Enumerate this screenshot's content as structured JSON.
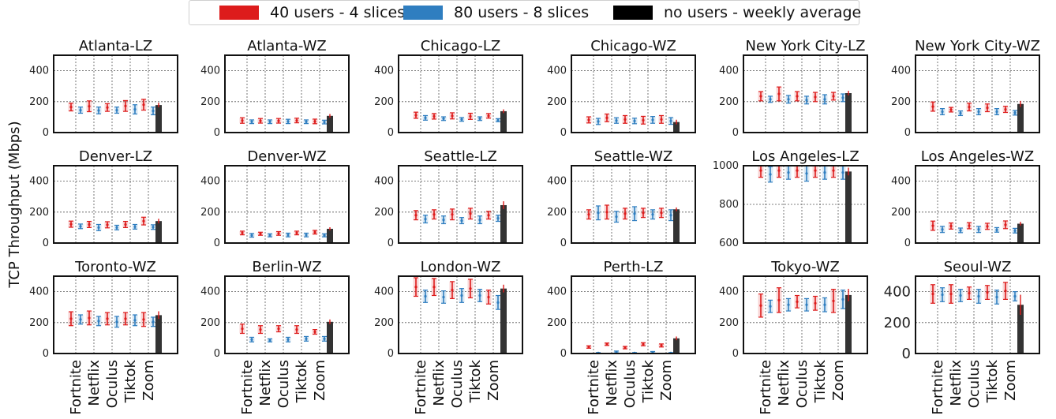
{
  "chart_data": {
    "type": "bar",
    "ylabel": "TCP Throughput (Mbps)",
    "categories": [
      "Fortnite",
      "Netflix",
      "Oculus",
      "Tiktok",
      "Zoom"
    ],
    "legend": [
      {
        "label": "40 users - 4 slices",
        "color": "#dd1c1c"
      },
      {
        "label": "80 users - 8 slices",
        "color": "#2f7ec0"
      },
      {
        "label": "no users - weekly average",
        "color": "#000000"
      }
    ],
    "panels": [
      {
        "title": "Atlanta-LZ",
        "ylim": [
          0,
          500
        ],
        "yticks": [
          0,
          200,
          400
        ],
        "s40": [
          [
            165,
            25
          ],
          [
            170,
            35
          ],
          [
            162,
            25
          ],
          [
            172,
            35
          ],
          [
            180,
            35
          ]
        ],
        "s80": [
          [
            145,
            20
          ],
          [
            143,
            22
          ],
          [
            145,
            20
          ],
          [
            150,
            30
          ],
          [
            140,
            25
          ]
        ],
        "avg": [
          178,
          15
        ]
      },
      {
        "title": "Atlanta-WZ",
        "ylim": [
          0,
          500
        ],
        "yticks": [
          0,
          200,
          400
        ],
        "s40": [
          [
            78,
            18
          ],
          [
            76,
            15
          ],
          [
            76,
            15
          ],
          [
            78,
            15
          ],
          [
            72,
            15
          ]
        ],
        "s80": [
          [
            70,
            12
          ],
          [
            70,
            12
          ],
          [
            72,
            14
          ],
          [
            70,
            12
          ],
          [
            68,
            12
          ]
        ],
        "avg": [
          108,
          12
        ]
      },
      {
        "title": "Chicago-LZ",
        "ylim": [
          0,
          500
        ],
        "yticks": [
          0,
          200,
          400
        ],
        "s40": [
          [
            112,
            20
          ],
          [
            105,
            18
          ],
          [
            108,
            20
          ],
          [
            105,
            20
          ],
          [
            108,
            15
          ]
        ],
        "s80": [
          [
            95,
            15
          ],
          [
            90,
            12
          ],
          [
            85,
            12
          ],
          [
            90,
            12
          ],
          [
            80,
            10
          ]
        ],
        "avg": [
          138,
          12
        ]
      },
      {
        "title": "Chicago-WZ",
        "ylim": [
          0,
          500
        ],
        "yticks": [
          0,
          200,
          400
        ],
        "s40": [
          [
            82,
            20
          ],
          [
            95,
            25
          ],
          [
            85,
            25
          ],
          [
            80,
            25
          ],
          [
            85,
            25
          ]
        ],
        "s80": [
          [
            72,
            20
          ],
          [
            78,
            18
          ],
          [
            75,
            18
          ],
          [
            82,
            22
          ],
          [
            75,
            22
          ]
        ],
        "avg": [
          68,
          15
        ]
      },
      {
        "title": "New York City-LZ",
        "ylim": [
          0,
          500
        ],
        "yticks": [
          0,
          200,
          400
        ],
        "s40": [
          [
            235,
            30
          ],
          [
            250,
            45
          ],
          [
            235,
            30
          ],
          [
            230,
            30
          ],
          [
            235,
            25
          ]
        ],
        "s80": [
          [
            215,
            20
          ],
          [
            215,
            25
          ],
          [
            210,
            25
          ],
          [
            215,
            30
          ],
          [
            225,
            25
          ]
        ],
        "avg": [
          255,
          15
        ]
      },
      {
        "title": "New York City-WZ",
        "ylim": [
          0,
          500
        ],
        "yticks": [
          0,
          200,
          400
        ],
        "s40": [
          [
            168,
            30
          ],
          [
            148,
            15
          ],
          [
            165,
            25
          ],
          [
            160,
            25
          ],
          [
            150,
            20
          ]
        ],
        "s80": [
          [
            135,
            20
          ],
          [
            125,
            15
          ],
          [
            135,
            20
          ],
          [
            135,
            20
          ],
          [
            128,
            15
          ]
        ],
        "avg": [
          185,
          20
        ]
      },
      {
        "title": "Denver-LZ",
        "ylim": [
          0,
          500
        ],
        "yticks": [
          0,
          200,
          400
        ],
        "s40": [
          [
            122,
            20
          ],
          [
            120,
            20
          ],
          [
            118,
            20
          ],
          [
            120,
            20
          ],
          [
            142,
            25
          ]
        ],
        "s80": [
          [
            108,
            15
          ],
          [
            100,
            20
          ],
          [
            100,
            15
          ],
          [
            105,
            15
          ],
          [
            103,
            15
          ]
        ],
        "avg": [
          142,
          15
        ]
      },
      {
        "title": "Denver-WZ",
        "ylim": [
          0,
          500
        ],
        "yticks": [
          0,
          200,
          400
        ],
        "s40": [
          [
            65,
            12
          ],
          [
            60,
            10
          ],
          [
            62,
            12
          ],
          [
            65,
            12
          ],
          [
            70,
            12
          ]
        ],
        "s80": [
          [
            50,
            12
          ],
          [
            50,
            10
          ],
          [
            52,
            12
          ],
          [
            52,
            12
          ],
          [
            50,
            10
          ]
        ],
        "avg": [
          92,
          10
        ]
      },
      {
        "title": "Seattle-LZ",
        "ylim": [
          0,
          500
        ],
        "yticks": [
          0,
          200,
          400
        ],
        "s40": [
          [
            180,
            30
          ],
          [
            185,
            30
          ],
          [
            185,
            35
          ],
          [
            190,
            35
          ],
          [
            180,
            25
          ]
        ],
        "s80": [
          [
            155,
            25
          ],
          [
            150,
            25
          ],
          [
            145,
            20
          ],
          [
            150,
            25
          ],
          [
            160,
            20
          ]
        ],
        "avg": [
          245,
          25
        ]
      },
      {
        "title": "Seattle-WZ",
        "ylim": [
          0,
          500
        ],
        "yticks": [
          0,
          200,
          400
        ],
        "s40": [
          [
            185,
            30
          ],
          [
            200,
            45
          ],
          [
            190,
            35
          ],
          [
            195,
            30
          ],
          [
            195,
            30
          ]
        ],
        "s80": [
          [
            195,
            45
          ],
          [
            170,
            35
          ],
          [
            190,
            45
          ],
          [
            185,
            30
          ],
          [
            180,
            35
          ]
        ],
        "avg": [
          218,
          12
        ]
      },
      {
        "title": "Los Angeles-LZ",
        "ylim": [
          600,
          1000
        ],
        "yticks": [
          600,
          800,
          1000
        ],
        "s40": [
          [
            975,
            35
          ],
          [
            975,
            35
          ],
          [
            975,
            35
          ],
          [
            975,
            35
          ],
          [
            975,
            35
          ]
        ],
        "s80": [
          [
            955,
            40
          ],
          [
            965,
            35
          ],
          [
            960,
            40
          ],
          [
            965,
            35
          ],
          [
            965,
            35
          ]
        ],
        "avg": [
          970,
          20
        ]
      },
      {
        "title": "Los Angeles-WZ",
        "ylim": [
          0,
          500
        ],
        "yticks": [
          0,
          200,
          400
        ],
        "s40": [
          [
            112,
            30
          ],
          [
            110,
            20
          ],
          [
            112,
            20
          ],
          [
            108,
            20
          ],
          [
            118,
            25
          ]
        ],
        "s80": [
          [
            88,
            20
          ],
          [
            82,
            15
          ],
          [
            88,
            20
          ],
          [
            85,
            15
          ],
          [
            80,
            15
          ]
        ],
        "avg": [
          125,
          12
        ]
      },
      {
        "title": "Toronto-WZ",
        "ylim": [
          0,
          500
        ],
        "yticks": [
          0,
          200,
          400
        ],
        "s40": [
          [
            225,
            45
          ],
          [
            230,
            45
          ],
          [
            225,
            40
          ],
          [
            225,
            40
          ],
          [
            220,
            45
          ]
        ],
        "s80": [
          [
            220,
            30
          ],
          [
            210,
            30
          ],
          [
            205,
            35
          ],
          [
            215,
            35
          ],
          [
            205,
            30
          ]
        ],
        "avg": [
          248,
          25
        ]
      },
      {
        "title": "Berlin-WZ",
        "ylim": [
          0,
          500
        ],
        "yticks": [
          0,
          200,
          400
        ],
        "s40": [
          [
            160,
            30
          ],
          [
            155,
            25
          ],
          [
            160,
            20
          ],
          [
            155,
            25
          ],
          [
            140,
            15
          ]
        ],
        "s80": [
          [
            90,
            15
          ],
          [
            85,
            10
          ],
          [
            90,
            15
          ],
          [
            95,
            15
          ],
          [
            95,
            15
          ]
        ],
        "avg": [
          205,
          15
        ]
      },
      {
        "title": "London-WZ",
        "ylim": [
          0,
          500
        ],
        "yticks": [
          0,
          200,
          400
        ],
        "s40": [
          [
            430,
            60
          ],
          [
            430,
            55
          ],
          [
            410,
            55
          ],
          [
            420,
            60
          ],
          [
            365,
            45
          ]
        ],
        "s80": [
          [
            370,
            40
          ],
          [
            365,
            40
          ],
          [
            375,
            45
          ],
          [
            375,
            40
          ],
          [
            330,
            45
          ]
        ],
        "avg": [
          420,
          25
        ]
      },
      {
        "title": "Perth-LZ",
        "ylim": [
          0,
          500
        ],
        "yticks": [
          0,
          200,
          400
        ],
        "s40": [
          [
            42,
            8
          ],
          [
            60,
            8
          ],
          [
            38,
            8
          ],
          [
            60,
            10
          ],
          [
            52,
            10
          ]
        ],
        "s80": [
          [
            3,
            3
          ],
          [
            10,
            6
          ],
          [
            3,
            3
          ],
          [
            8,
            5
          ],
          [
            3,
            3
          ]
        ],
        "avg": [
          98,
          12
        ]
      },
      {
        "title": "Tokyo-WZ",
        "ylim": [
          0,
          500
        ],
        "yticks": [
          0,
          200,
          400
        ],
        "s40": [
          [
            310,
            75
          ],
          [
            345,
            80
          ],
          [
            335,
            40
          ],
          [
            325,
            45
          ],
          [
            340,
            75
          ]
        ],
        "s80": [
          [
            305,
            40
          ],
          [
            315,
            40
          ],
          [
            315,
            40
          ],
          [
            315,
            45
          ],
          [
            350,
            60
          ]
        ],
        "avg": [
          378,
          40
        ]
      },
      {
        "title": "Seoul-WZ",
        "ylim": [
          0,
          500
        ],
        "yticks": [
          0,
          200,
          400
        ],
        "s40": [
          [
            385,
            60
          ],
          [
            385,
            60
          ],
          [
            390,
            40
          ],
          [
            395,
            45
          ],
          [
            405,
            55
          ]
        ],
        "s80": [
          [
            380,
            45
          ],
          [
            375,
            40
          ],
          [
            370,
            45
          ],
          [
            365,
            45
          ],
          [
            370,
            30
          ]
        ],
        "avg": [
          315,
          65
        ]
      }
    ]
  }
}
